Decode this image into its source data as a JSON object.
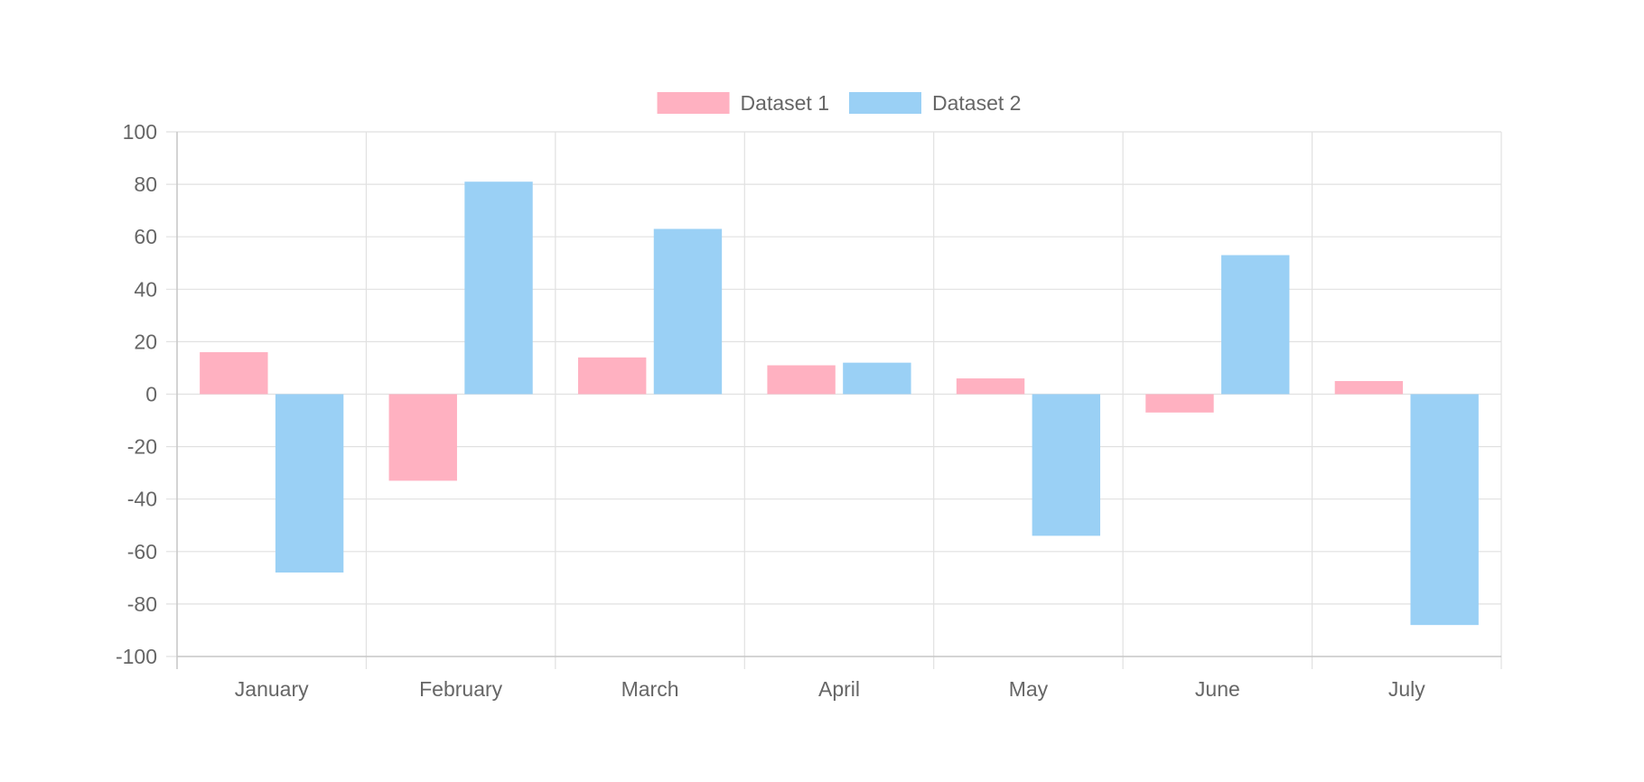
{
  "chart_data": {
    "type": "bar",
    "title": "",
    "xlabel": "",
    "ylabel": "",
    "categories": [
      "January",
      "February",
      "March",
      "April",
      "May",
      "June",
      "July"
    ],
    "series": [
      {
        "name": "Dataset 1",
        "color": "#ffb1c1",
        "values": [
          16,
          -33,
          14,
          11,
          6,
          -7,
          5
        ]
      },
      {
        "name": "Dataset 2",
        "color": "#9ad0f5",
        "values": [
          -68,
          81,
          63,
          12,
          -54,
          53,
          -88
        ]
      }
    ],
    "ylim": [
      -100,
      100
    ],
    "yticks": [
      "100",
      "80",
      "60",
      "40",
      "20",
      "0",
      "-20",
      "-40",
      "-60",
      "-80",
      "-100"
    ],
    "grid": true,
    "legend_position": "top",
    "colors": {
      "grid": "#e1e1e1",
      "axis": "#c7c7c7",
      "text": "#666666"
    }
  }
}
